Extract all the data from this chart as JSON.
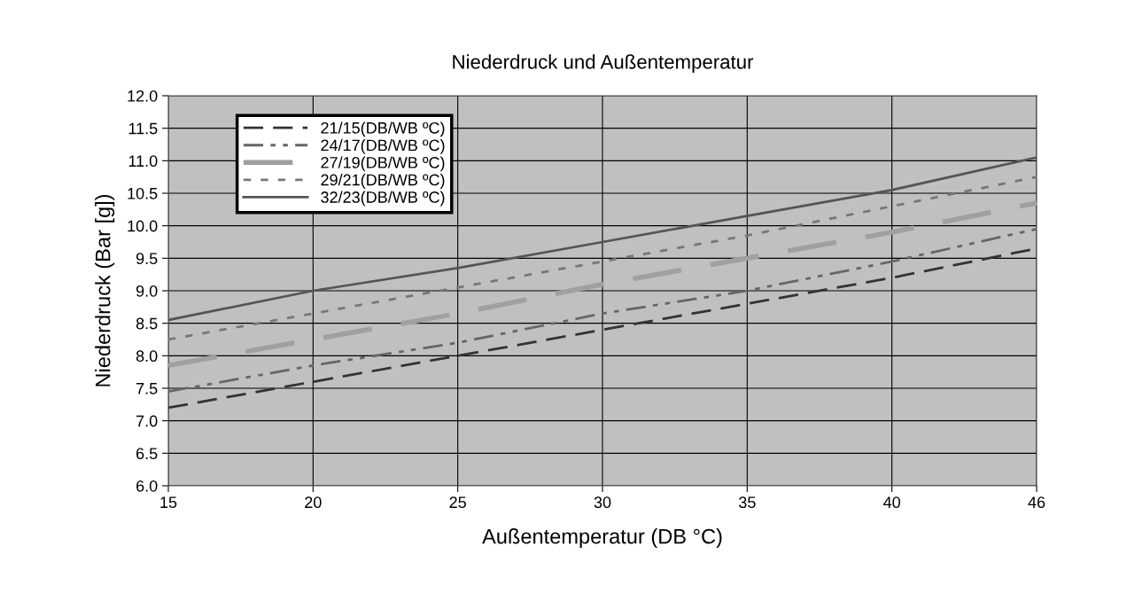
{
  "chart_data": {
    "type": "line",
    "title": "Niederdruck und Außentemperatur",
    "xlabel": "Außentemperatur (DB °C)",
    "ylabel": "Niederdruck (Bar [g])",
    "categories": [
      "15",
      "20",
      "25",
      "30",
      "35",
      "40",
      "46"
    ],
    "series": [
      {
        "name": "21/15(DB/WB ºC)",
        "color": "#333333",
        "line_style": "dashed",
        "values": [
          7.2,
          7.6,
          8.0,
          8.4,
          8.8,
          9.2,
          9.65
        ]
      },
      {
        "name": "24/17(DB/WB ºC)",
        "color": "#666666",
        "line_style": "dashed",
        "values": [
          7.45,
          7.85,
          8.2,
          8.65,
          9.0,
          9.45,
          9.95
        ]
      },
      {
        "name": "27/19(DB/WB ºC)",
        "color": "#a0a0a0",
        "line_style": "dashed",
        "values": [
          7.85,
          8.25,
          8.65,
          9.1,
          9.5,
          9.9,
          10.35
        ]
      },
      {
        "name": "29/21(DB/WB ºC)",
        "color": "#777777",
        "line_style": "dotted",
        "values": [
          8.25,
          8.65,
          9.05,
          9.45,
          9.85,
          10.3,
          10.75
        ]
      },
      {
        "name": "32/23(DB/WB ºC)",
        "color": "#555555",
        "line_style": "solid",
        "values": [
          8.55,
          9.0,
          9.35,
          9.75,
          10.15,
          10.55,
          11.05
        ]
      }
    ],
    "ylim": [
      6,
      12
    ],
    "yticks": [
      {
        "value": 6,
        "label": "6.0"
      },
      {
        "value": 6.5,
        "label": "6.5"
      },
      {
        "value": 7,
        "label": "7.0"
      },
      {
        "value": 7.5,
        "label": "7.5"
      },
      {
        "value": 8,
        "label": "8.0"
      },
      {
        "value": 8.5,
        "label": "8.5"
      },
      {
        "value": 9,
        "label": "9.0"
      },
      {
        "value": 9.5,
        "label": "9.5"
      },
      {
        "value": 10,
        "label": "10.0"
      },
      {
        "value": 10.5,
        "label": "10.5"
      },
      {
        "value": 11,
        "label": "11.0"
      },
      {
        "value": 11.5,
        "label": "11.5"
      },
      {
        "value": 12,
        "label": "12.0"
      }
    ],
    "grid": true,
    "legend": "top left",
    "marker": "none"
  }
}
